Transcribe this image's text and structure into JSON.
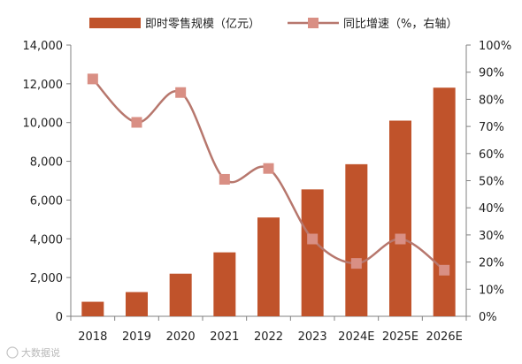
{
  "chart_data": {
    "type": "bar",
    "categories": [
      "2018",
      "2019",
      "2020",
      "2021",
      "2022",
      "2023",
      "2024E",
      "2025E",
      "2026E"
    ],
    "series": [
      {
        "name": "即时零售规模（亿元）",
        "type": "bar",
        "axis": "left",
        "color": "#c0532b",
        "values": [
          750,
          1250,
          2200,
          3300,
          5100,
          6550,
          7850,
          10100,
          11800
        ]
      },
      {
        "name": "同比增速（%，右轴）",
        "type": "line",
        "axis": "right",
        "color": "#b7776d",
        "marker_color": "#d98f84",
        "values": [
          87.5,
          71.5,
          82.5,
          50.5,
          54.5,
          28.5,
          19.5,
          28.5,
          17.0
        ]
      }
    ],
    "y_left": {
      "range": [
        0,
        14000
      ],
      "ticks": [
        0,
        2000,
        4000,
        6000,
        8000,
        10000,
        12000,
        14000
      ],
      "tick_labels": [
        "0",
        "2,000",
        "4,000",
        "6,000",
        "8,000",
        "10,000",
        "12,000",
        "14,000"
      ]
    },
    "y_right": {
      "range": [
        0,
        100
      ],
      "ticks": [
        0,
        10,
        20,
        30,
        40,
        50,
        60,
        70,
        80,
        90,
        100
      ],
      "tick_labels": [
        "0%",
        "10%",
        "20%",
        "30%",
        "40%",
        "50%",
        "60%",
        "70%",
        "80%",
        "90%",
        "100%"
      ]
    },
    "legend_position": "top",
    "grid": false,
    "title": "",
    "xlabel": "",
    "ylabel": ""
  },
  "watermark": "大数据说"
}
